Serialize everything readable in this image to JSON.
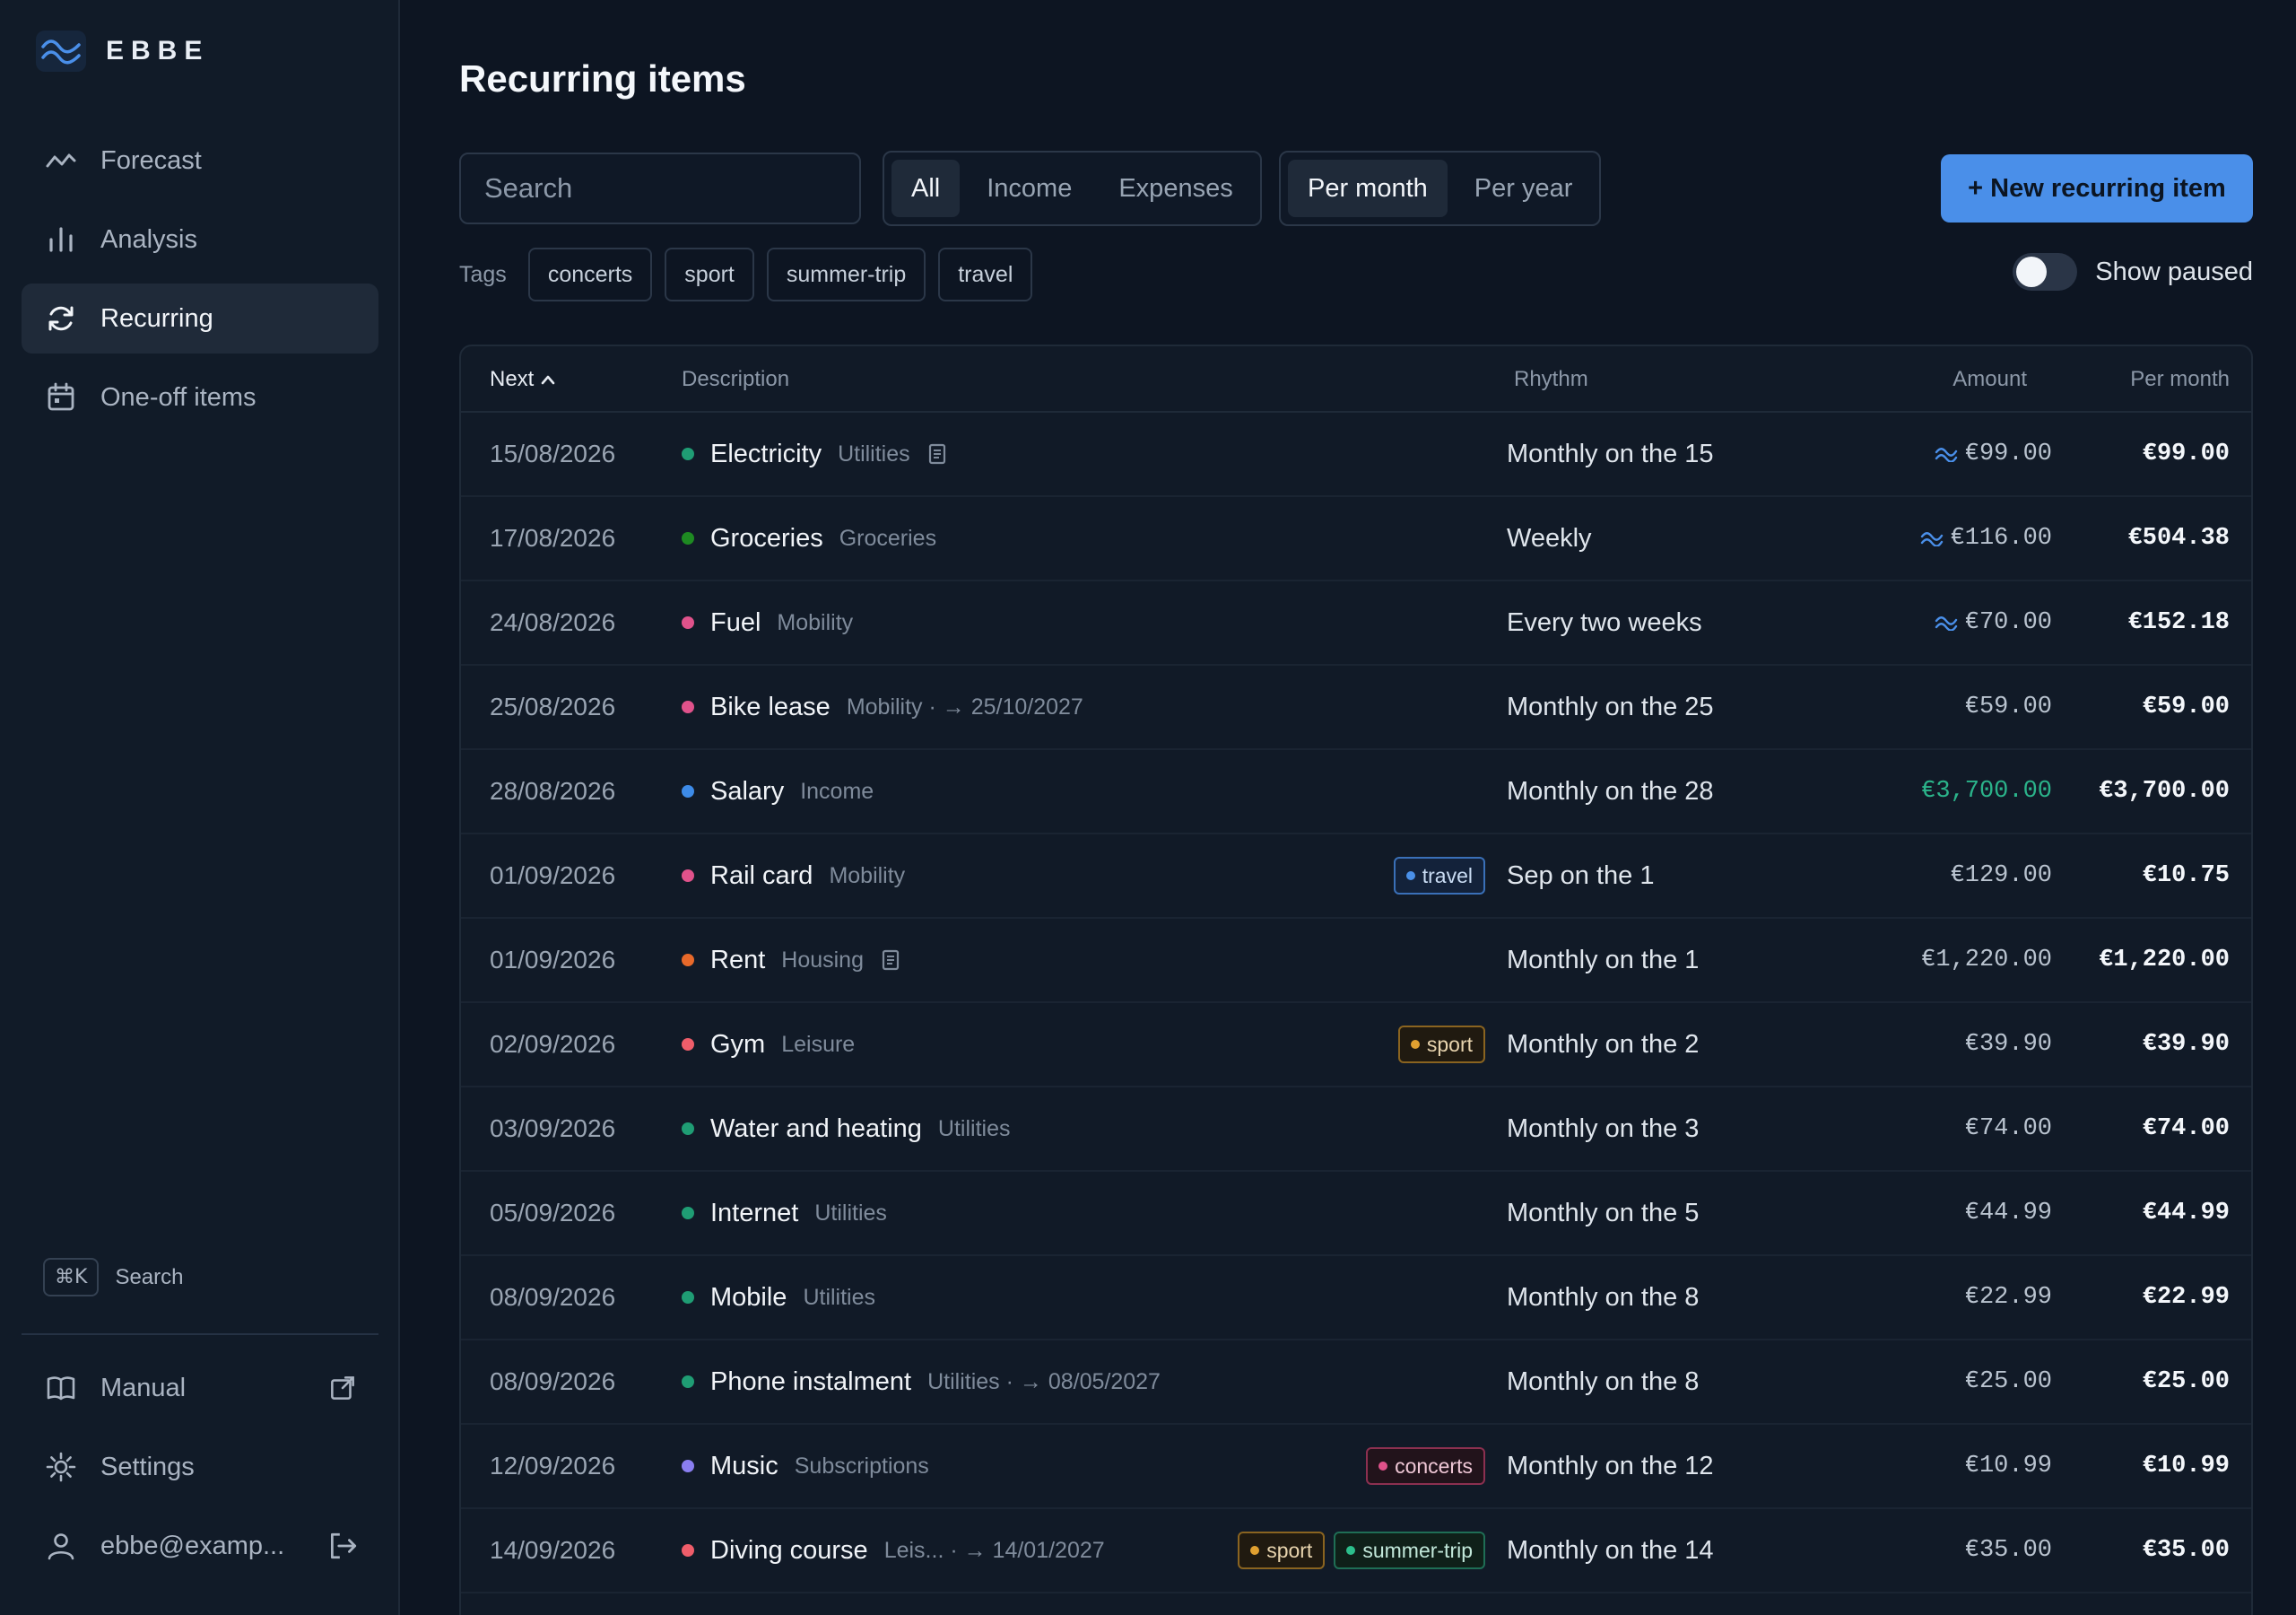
{
  "brand": {
    "name": "EBBE"
  },
  "sidebar": {
    "items": [
      {
        "label": "Forecast",
        "icon": "forecast-icon",
        "active": false
      },
      {
        "label": "Analysis",
        "icon": "bar-chart-icon",
        "active": false
      },
      {
        "label": "Recurring",
        "icon": "refresh-icon",
        "active": true
      },
      {
        "label": "One-off items",
        "icon": "calendar-icon",
        "active": false
      }
    ],
    "shortcut": {
      "key": "⌘K",
      "label": "Search"
    },
    "bottom": [
      {
        "label": "Manual",
        "icon": "book-icon",
        "trail": "external-link-icon"
      },
      {
        "label": "Settings",
        "icon": "gear-icon"
      },
      {
        "label": "ebbe@examp...",
        "icon": "user-icon",
        "trail": "logout-icon"
      }
    ]
  },
  "page": {
    "title": "Recurring items"
  },
  "search": {
    "placeholder": "Search"
  },
  "filters": {
    "type": [
      "All",
      "Income",
      "Expenses"
    ],
    "type_selected": "All"
  },
  "period": {
    "options": [
      "Per month",
      "Per year"
    ],
    "selected": "Per month"
  },
  "new_button": {
    "label": "+ New recurring item"
  },
  "tags": {
    "label": "Tags",
    "items": [
      "concerts",
      "sport",
      "summer-trip",
      "travel"
    ]
  },
  "paused_toggle": {
    "label": "Show paused",
    "on": false
  },
  "table": {
    "headers": {
      "next": "Next",
      "description": "Description",
      "rhythm": "Rhythm",
      "amount": "Amount",
      "per_month": "Per month"
    },
    "rows": [
      {
        "date": "15/08/2026",
        "name": "Electricity",
        "category": "Utilities",
        "note": true,
        "tags": [],
        "rhythm": "Monthly on the 15",
        "variable": true,
        "amount": "€99.00",
        "per_month": "€99.00",
        "dot": "#1f9d74"
      },
      {
        "date": "17/08/2026",
        "name": "Groceries",
        "category": "Groceries",
        "tags": [],
        "rhythm": "Weekly",
        "variable": true,
        "amount": "€116.00",
        "per_month": "€504.38",
        "dot": "#1e8a22"
      },
      {
        "date": "24/08/2026",
        "name": "Fuel",
        "category": "Mobility",
        "tags": [],
        "rhythm": "Every two weeks",
        "variable": true,
        "amount": "€70.00",
        "per_month": "€152.18",
        "dot": "#e0528b"
      },
      {
        "date": "25/08/2026",
        "name": "Bike lease",
        "category": "Mobility · → 25/10/2027",
        "tags": [],
        "rhythm": "Monthly on the 25",
        "amount": "€59.00",
        "per_month": "€59.00",
        "dot": "#e0528b"
      },
      {
        "date": "28/08/2026",
        "name": "Salary",
        "category": "Income",
        "tags": [],
        "rhythm": "Monthly on the 28",
        "amount": "€3,700.00",
        "income": true,
        "per_month": "€3,700.00",
        "dot": "#3d8be8"
      },
      {
        "date": "01/09/2026",
        "name": "Rail card",
        "category": "Mobility",
        "tags": [
          "travel"
        ],
        "rhythm": "Sep on the 1",
        "amount": "€129.00",
        "per_month": "€10.75",
        "dot": "#e0528b"
      },
      {
        "date": "01/09/2026",
        "name": "Rent",
        "category": "Housing",
        "note": true,
        "tags": [],
        "rhythm": "Monthly on the 1",
        "amount": "€1,220.00",
        "per_month": "€1,220.00",
        "dot": "#e8692a"
      },
      {
        "date": "02/09/2026",
        "name": "Gym",
        "category": "Leisure",
        "tags": [
          "sport"
        ],
        "rhythm": "Monthly on the 2",
        "amount": "€39.90",
        "per_month": "€39.90",
        "dot": "#ef5d6a"
      },
      {
        "date": "03/09/2026",
        "name": "Water and heating",
        "category": "Utilities",
        "tags": [],
        "rhythm": "Monthly on the 3",
        "amount": "€74.00",
        "per_month": "€74.00",
        "dot": "#1f9d74"
      },
      {
        "date": "05/09/2026",
        "name": "Internet",
        "category": "Utilities",
        "tags": [],
        "rhythm": "Monthly on the 5",
        "amount": "€44.99",
        "per_month": "€44.99",
        "dot": "#1f9d74"
      },
      {
        "date": "08/09/2026",
        "name": "Mobile",
        "category": "Utilities",
        "tags": [],
        "rhythm": "Monthly on the 8",
        "amount": "€22.99",
        "per_month": "€22.99",
        "dot": "#1f9d74"
      },
      {
        "date": "08/09/2026",
        "name": "Phone instalment",
        "category": "Utilities · → 08/05/2027",
        "tags": [],
        "rhythm": "Monthly on the 8",
        "amount": "€25.00",
        "per_month": "€25.00",
        "dot": "#1f9d74"
      },
      {
        "date": "12/09/2026",
        "name": "Music",
        "category": "Subscriptions",
        "tags": [
          "concerts"
        ],
        "rhythm": "Monthly on the 12",
        "amount": "€10.99",
        "per_month": "€10.99",
        "dot": "#8a7ef0"
      },
      {
        "date": "14/09/2026",
        "name": "Diving course",
        "category": "Leis...   · → 14/01/2027",
        "tags": [
          "sport",
          "summer-trip"
        ],
        "rhythm": "Monthly on the 14",
        "amount": "€35.00",
        "per_month": "€35.00",
        "dot": "#ef5d6a"
      }
    ]
  },
  "tag_colors": {
    "travel": {
      "border": "#3a70b8",
      "dot": "#4a90e8",
      "text": "#c9dcf3",
      "bg": "#13223a"
    },
    "sport": {
      "border": "#8a6420",
      "dot": "#e0a030",
      "text": "#e8d4ae",
      "bg": "#201a10"
    },
    "concerts": {
      "border": "#8c3050",
      "dot": "#e0528b",
      "text": "#efc7d6",
      "bg": "#22131b"
    },
    "summer-trip": {
      "border": "#1f6e55",
      "dot": "#2cbf8c",
      "text": "#c2e8da",
      "bg": "#0f2019"
    }
  },
  "colors": {
    "accent": "#4a8fe9",
    "income": "#2bb38a",
    "variable": "#4a8fe9"
  }
}
